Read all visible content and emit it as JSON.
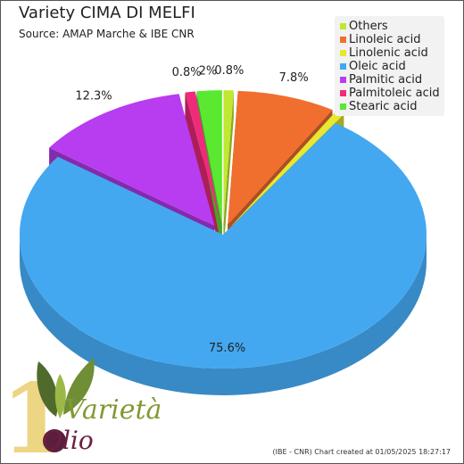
{
  "chart_data": {
    "type": "pie",
    "title": "Variety CIMA DI MELFI",
    "subtitle": "Source: AMAP Marche & IBE CNR",
    "legend_position": "top-right",
    "slices": [
      {
        "name": "Others",
        "value": 0.8,
        "label": "0.8%",
        "color": "#c0e830"
      },
      {
        "name": "Linoleic acid",
        "value": 7.8,
        "label": "7.8%",
        "color": "#f06e2e"
      },
      {
        "name": "Linolenic acid",
        "value": 0.7,
        "label": "0.7%",
        "color": "#e8e830"
      },
      {
        "name": "Oleic acid",
        "value": 75.6,
        "label": "75.6%",
        "color": "#43a8f0"
      },
      {
        "name": "Palmitic acid",
        "value": 12.3,
        "label": "12.3%",
        "color": "#b83cf0"
      },
      {
        "name": "Palmitoleic acid",
        "value": 0.8,
        "label": "0.8%",
        "color": "#f02a7a"
      },
      {
        "name": "Stearic acid",
        "value": 2,
        "label": "2%",
        "color": "#5ae830"
      }
    ]
  },
  "footer": {
    "credit": "(IBE - CNR) Chart created at 01/05/2025 18:27:17"
  },
  "logo": {
    "text_top": "Varietà",
    "text_bottom": "Olio",
    "digit": "1"
  }
}
